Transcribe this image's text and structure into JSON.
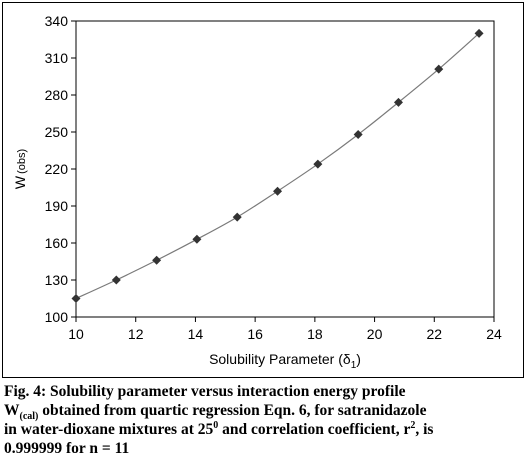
{
  "chart_data": {
    "type": "line",
    "xlabel": "Solubility Parameter (δ",
    "xlabel_sub": "1",
    "xlabel_close": ")",
    "ylabel": "W",
    "ylabel_sub": "(obs)",
    "xlim": [
      10,
      24
    ],
    "ylim": [
      100,
      340
    ],
    "xticks": [
      "10",
      "12",
      "14",
      "16",
      "18",
      "20",
      "22",
      "24"
    ],
    "yticks": [
      "100",
      "130",
      "160",
      "190",
      "220",
      "250",
      "280",
      "310",
      "340"
    ],
    "grid": false,
    "series": [
      {
        "marker": "diamond",
        "color": "#333333",
        "line_color": "#7a7a7a",
        "points": [
          [
            10.0,
            115
          ],
          [
            11.35,
            130
          ],
          [
            12.7,
            146
          ],
          [
            14.05,
            163
          ],
          [
            15.4,
            181
          ],
          [
            16.75,
            202
          ],
          [
            18.1,
            224
          ],
          [
            19.45,
            248
          ],
          [
            20.8,
            274
          ],
          [
            22.15,
            301
          ],
          [
            23.5,
            330
          ]
        ]
      }
    ]
  },
  "caption": {
    "line1": "Fig. 4: Solubility parameter versus interaction energy profile",
    "line2_w": "W",
    "line2_sub": "(cal)",
    "line2_rest": " obtained from quartic regression Eqn. 6, for satranidazole",
    "line3_pre": "in water-dioxane mixtures at 25",
    "line3_sup1": "0",
    "line3_mid": " and correlation coefficient, r",
    "line3_sup2": "2",
    "line3_post": ", is",
    "line4": "0.999999 for n = 11"
  }
}
